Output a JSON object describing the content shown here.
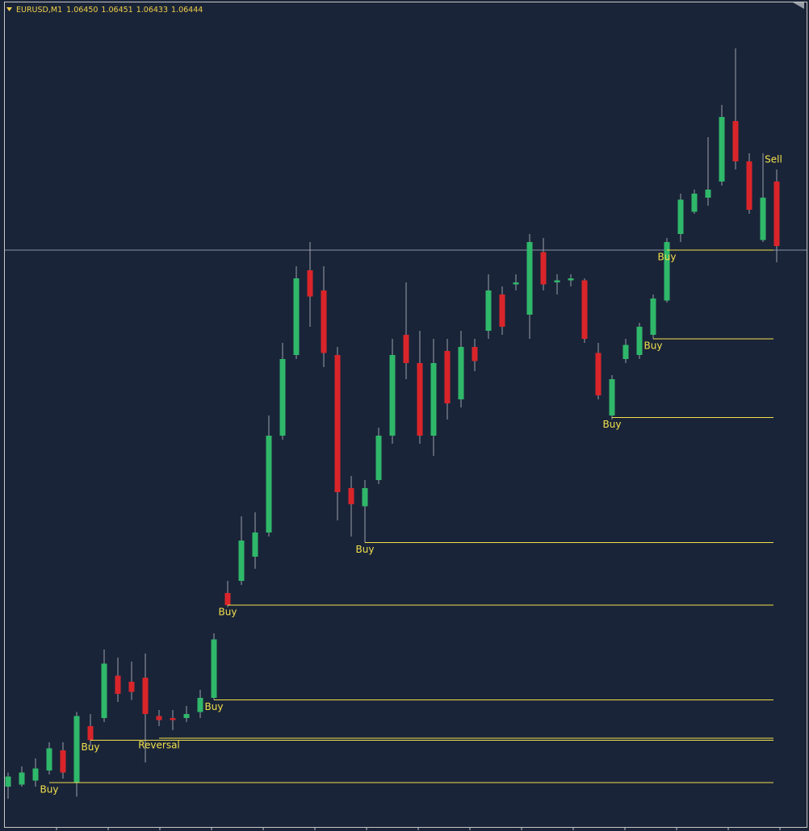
{
  "chart_data": {
    "type": "candlestick",
    "symbol": "EURUSD,M1",
    "quotes": [
      {
        "value": 1.0645,
        "label": "1.06450"
      },
      {
        "value": 1.06451,
        "label": "1.06451"
      },
      {
        "value": 1.06433,
        "label": "1.06433"
      },
      {
        "value": 1.06444,
        "label": "1.06444"
      }
    ],
    "ylim": [
      1.06158,
      1.06566
    ],
    "up_color": "#2fb86a",
    "down_color": "#d9252a",
    "signal_color": "#f2e14c",
    "open": [
      1.06178,
      1.06179,
      1.06181,
      1.06186,
      1.06196,
      1.0618,
      1.06208,
      1.06212,
      1.06233,
      1.0623,
      1.06232,
      1.06213,
      1.06212,
      1.06212,
      1.06215,
      1.06222,
      1.06274,
      1.0628,
      1.06292,
      1.06304,
      1.06352,
      1.06392,
      1.06434,
      1.06424,
      1.06392,
      1.06326,
      1.06317,
      1.0633,
      1.06352,
      1.06402,
      1.06388,
      1.06352,
      1.06394,
      1.0637,
      1.06396,
      1.06404,
      1.06422,
      1.06427,
      1.06412,
      1.06443,
      1.06428,
      1.06429,
      1.06429,
      1.06393,
      1.06362,
      1.0639,
      1.06392,
      1.06402,
      1.06419,
      1.06452,
      1.06463,
      1.0647,
      1.06478,
      1.06508,
      1.06488,
      1.06449,
      1.06478
    ],
    "high": [
      1.06185,
      1.06188,
      1.06192,
      1.062,
      1.062,
      1.06215,
      1.06214,
      1.06246,
      1.06242,
      1.0624,
      1.06244,
      1.06216,
      1.06216,
      1.06218,
      1.06226,
      1.06254,
      1.0628,
      1.06312,
      1.06314,
      1.06362,
      1.06398,
      1.06436,
      1.06448,
      1.06436,
      1.06396,
      1.06332,
      1.0633,
      1.06356,
      1.064,
      1.06428,
      1.06404,
      1.064,
      1.064,
      1.06404,
      1.064,
      1.06432,
      1.06426,
      1.06432,
      1.06452,
      1.0645,
      1.06432,
      1.06432,
      1.0643,
      1.06398,
      1.06382,
      1.064,
      1.06408,
      1.06422,
      1.0645,
      1.06472,
      1.06474,
      1.065,
      1.06516,
      1.06544,
      1.06492,
      1.06492,
      1.06484
    ],
    "low": [
      1.06172,
      1.06178,
      1.06178,
      1.06184,
      1.06182,
      1.06173,
      1.06198,
      1.0621,
      1.0622,
      1.06221,
      1.0619,
      1.06208,
      1.06206,
      1.0621,
      1.06212,
      1.06221,
      1.06267,
      1.06278,
      1.06286,
      1.06302,
      1.0635,
      1.0639,
      1.06406,
      1.06386,
      1.0631,
      1.06302,
      1.06299,
      1.06328,
      1.06348,
      1.0638,
      1.06348,
      1.06342,
      1.0636,
      1.06366,
      1.06384,
      1.064,
      1.06402,
      1.06424,
      1.064,
      1.06424,
      1.06422,
      1.06426,
      1.06398,
      1.0637,
      1.0636,
      1.06388,
      1.0639,
      1.064,
      1.06418,
      1.06448,
      1.06462,
      1.06466,
      1.06476,
      1.06484,
      1.06462,
      1.06448,
      1.06438
    ],
    "close": [
      1.06183,
      1.06185,
      1.06187,
      1.06197,
      1.06185,
      1.06213,
      1.06201,
      1.06239,
      1.06224,
      1.06225,
      1.06214,
      1.06211,
      1.06211,
      1.06214,
      1.06222,
      1.06251,
      1.06268,
      1.063,
      1.06304,
      1.06352,
      1.0639,
      1.0643,
      1.06421,
      1.06393,
      1.06324,
      1.06318,
      1.06326,
      1.06352,
      1.06392,
      1.06388,
      1.06352,
      1.06388,
      1.06368,
      1.06396,
      1.06389,
      1.06424,
      1.06406,
      1.06428,
      1.06448,
      1.06427,
      1.06429,
      1.0643,
      1.064,
      1.06372,
      1.0638,
      1.06397,
      1.06406,
      1.0642,
      1.06448,
      1.06469,
      1.06472,
      1.06474,
      1.0651,
      1.06488,
      1.06464,
      1.0647,
      1.06446
    ],
    "signals": [
      {
        "label": "Buy",
        "candle": 3,
        "level": 1.0618
      },
      {
        "label": "Buy",
        "candle": 6,
        "level": 1.06201
      },
      {
        "label": "Reversal",
        "candle": 11,
        "level": 1.06202
      },
      {
        "label": "Buy",
        "candle": 15,
        "level": 1.06221
      },
      {
        "label": "Buy",
        "candle": 16,
        "level": 1.06268
      },
      {
        "label": "Buy",
        "candle": 26,
        "level": 1.06299
      },
      {
        "label": "Buy",
        "candle": 44,
        "level": 1.06361
      },
      {
        "label": "Buy",
        "candle": 47,
        "level": 1.064
      },
      {
        "label": "Buy",
        "candle": 48,
        "level": 1.06444
      },
      {
        "label": "Sell",
        "candle": 56
      }
    ]
  }
}
